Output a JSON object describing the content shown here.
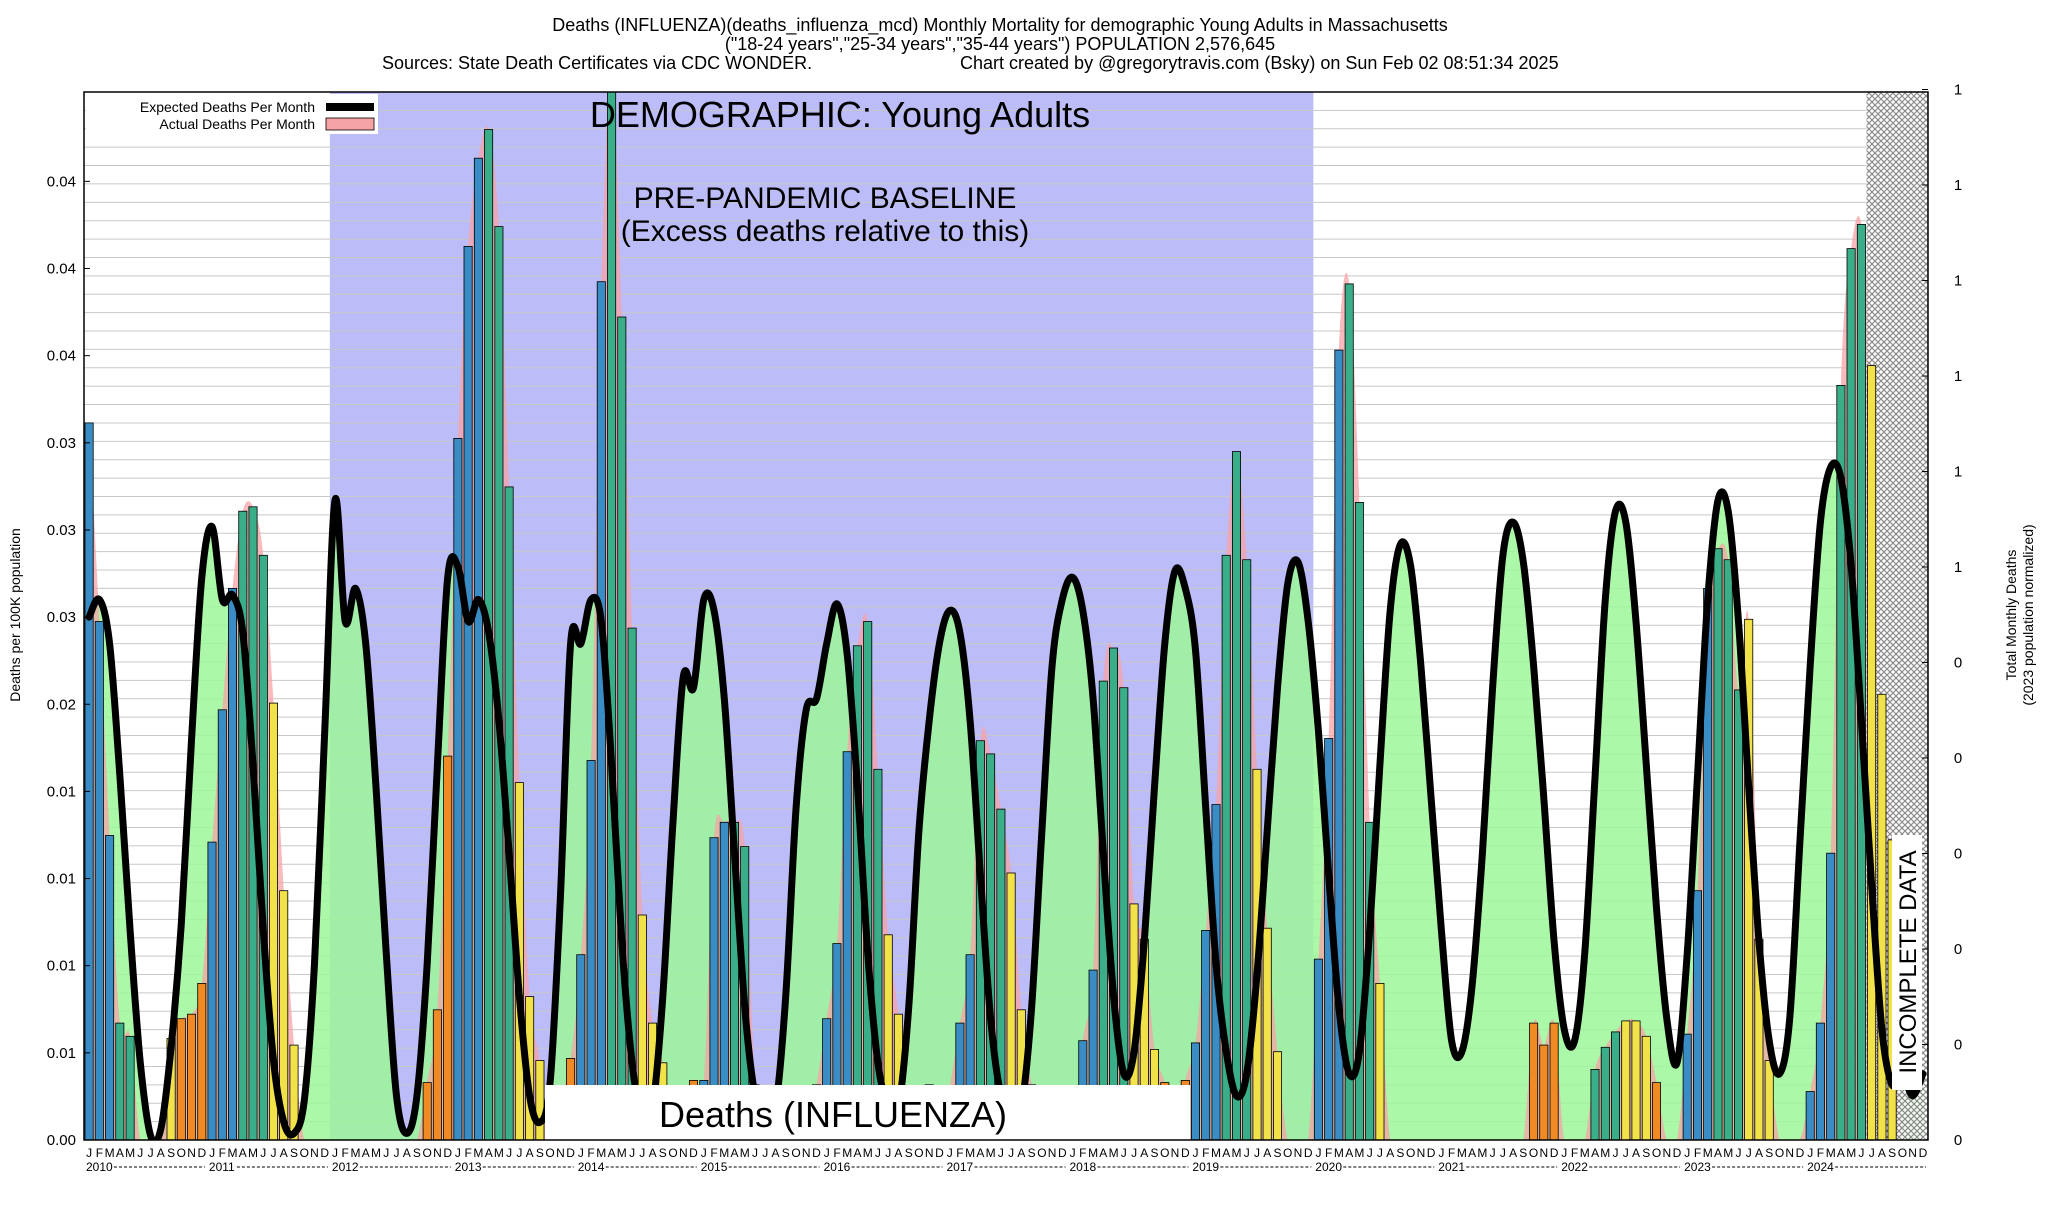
{
  "header": {
    "title_line1": "Deaths (INFLUENZA)(deaths_influenza_mcd) Monthly Mortality for demographic Young Adults in Massachusetts",
    "title_line2": "(\"18-24 years\",\"25-34 years\",\"35-44 years\") POPULATION 2,576,645",
    "sources": "Sources: State Death Certificates via CDC WONDER.",
    "credit": "Chart created by @gregorytravis.com (Bsky) on Sun Feb 02 08:51:34 2025"
  },
  "annotations": {
    "demographic": "DEMOGRAPHIC: Young Adults",
    "baseline_line1": "PRE-PANDEMIC BASELINE",
    "baseline_line2": "(Excess deaths relative to this)",
    "bottom_label": "Deaths (INFLUENZA)",
    "incomplete": "INCOMPLETE DATA"
  },
  "legend": {
    "expected": "Expected Deaths Per Month",
    "actual": "Actual Deaths Per Month"
  },
  "axes": {
    "ylabel_left": "Deaths per 100K population",
    "ylabel_right_line1": "Total Monthly Deaths",
    "ylabel_right_line2": "(2023 population normalized)",
    "left_ticks": [
      "0.00",
      "0.01",
      "0.01",
      "0.01",
      "0.01",
      "0.02",
      "0.03",
      "0.03",
      "0.03",
      "0.04",
      "0.04",
      "0.04"
    ],
    "right_ticks": [
      "0",
      "0",
      "0",
      "0",
      "0",
      "0",
      "1",
      "1",
      "1",
      "1",
      "1",
      "1"
    ],
    "month_letters": [
      "J",
      "F",
      "M",
      "A",
      "M",
      "J",
      "J",
      "A",
      "S",
      "O",
      "N",
      "D"
    ],
    "years": [
      "2010",
      "2011",
      "2012",
      "2013",
      "2014",
      "2015",
      "2016",
      "2017",
      "2018",
      "2019",
      "2020",
      "2021",
      "2022",
      "2023",
      "2024"
    ]
  },
  "colors": {
    "baseline_shade": "#bcbcf9",
    "expected_fill": "#9cf79a",
    "actual_fill": "#f5a3a5",
    "expected_line": "#000000",
    "incomplete_hatch": "#888888",
    "winter_bar": "#3a8cc4",
    "fall_bar": "#f08a24",
    "spring_bar": "#3aae88",
    "summer_bar": "#f2e24a"
  },
  "chart_data": {
    "type": "bar",
    "start": "2010-01",
    "ylim": [
      0,
      0.0475
    ],
    "grid": true,
    "legend_position": "top-left",
    "baseline_period": [
      "2012-01",
      "2019-12"
    ],
    "incomplete_period": [
      "2024-07",
      "2024-12"
    ],
    "series": [
      {
        "name": "Actual Deaths Per Month",
        "values": [
          0.0325,
          0.0235,
          0.0138,
          0.0053,
          0.0047,
          0.0,
          0.0,
          0.0,
          0.0046,
          0.0055,
          0.0057,
          0.0071,
          0.0135,
          0.0195,
          0.025,
          0.0285,
          0.0287,
          0.0265,
          0.0198,
          0.0113,
          0.0043,
          0.0,
          0.0,
          0.0,
          0.0,
          0.0,
          0.0,
          0.0,
          0.0,
          0.0,
          0.0,
          0.0,
          0.0,
          0.0026,
          0.0059,
          0.0174,
          0.0318,
          0.0405,
          0.0445,
          0.0458,
          0.0414,
          0.0296,
          0.0162,
          0.0065,
          0.0036,
          0.0,
          0.0018,
          0.0037,
          0.0084,
          0.0172,
          0.0389,
          0.0485,
          0.0373,
          0.0232,
          0.0102,
          0.0053,
          0.0035,
          0.0,
          0.0,
          0.0027,
          0.0027,
          0.0137,
          0.0144,
          0.0144,
          0.0133,
          0.0025,
          0.0,
          0.0,
          0.0,
          0.0,
          0.0,
          0.0025,
          0.0055,
          0.0089,
          0.0176,
          0.0224,
          0.0235,
          0.0168,
          0.0093,
          0.0057,
          0.0,
          0.0,
          0.0025,
          0.0,
          0.0024,
          0.0053,
          0.0084,
          0.0181,
          0.0175,
          0.015,
          0.0121,
          0.0059,
          0.0025,
          0.0,
          0.0,
          0.0,
          0.0,
          0.0045,
          0.0077,
          0.0208,
          0.0223,
          0.0205,
          0.0107,
          0.0091,
          0.0041,
          0.0026,
          0.0,
          0.0027,
          0.0044,
          0.0095,
          0.0152,
          0.0265,
          0.0312,
          0.0263,
          0.0168,
          0.0096,
          0.004,
          0.0,
          0.0,
          0.0,
          0.0082,
          0.0182,
          0.0358,
          0.0388,
          0.0289,
          0.0144,
          0.0071,
          0.0,
          0.0,
          0.0,
          0.0,
          0.0,
          0.0,
          0.0,
          0.0,
          0.0,
          0.0,
          0.0,
          0.0,
          0.0,
          0.0,
          0.0053,
          0.0043,
          0.0053,
          0.0,
          0.0,
          0.0,
          0.0032,
          0.0042,
          0.0049,
          0.0054,
          0.0054,
          0.0047,
          0.0026,
          0.0,
          0.0,
          0.0048,
          0.0113,
          0.025,
          0.0268,
          0.0263,
          0.0204,
          0.0236,
          0.0091,
          0.0036,
          0.0,
          0.0,
          0.0,
          0.0022,
          0.0053,
          0.013,
          0.0342,
          0.0404,
          0.0415,
          0.0351,
          0.0202,
          0.0136,
          0.0,
          0.0,
          0.0
        ]
      },
      {
        "name": "Expected Deaths Per Month",
        "values": [
          0.0237,
          0.0245,
          0.0225,
          0.0165,
          0.0095,
          0.0035,
          0.0002,
          0.0005,
          0.0042,
          0.0098,
          0.0182,
          0.0255,
          0.0278,
          0.0245,
          0.0247,
          0.023,
          0.017,
          0.0095,
          0.0036,
          0.0008,
          0.0003,
          0.0018,
          0.008,
          0.0185,
          0.029,
          0.0235,
          0.025,
          0.0225,
          0.016,
          0.0085,
          0.002,
          0.0003,
          0.002,
          0.008,
          0.017,
          0.0255,
          0.026,
          0.0235,
          0.0245,
          0.023,
          0.019,
          0.013,
          0.0065,
          0.002,
          0.0008,
          0.0026,
          0.011,
          0.0225,
          0.0225,
          0.0245,
          0.0235,
          0.017,
          0.009,
          0.0035,
          0.001,
          0.0015,
          0.0065,
          0.0145,
          0.021,
          0.0205,
          0.0245,
          0.024,
          0.02,
          0.013,
          0.006,
          0.002,
          0.0008,
          0.0015,
          0.0065,
          0.015,
          0.0195,
          0.02,
          0.0225,
          0.0243,
          0.022,
          0.016,
          0.0085,
          0.0035,
          0.0015,
          0.0015,
          0.006,
          0.014,
          0.019,
          0.0225,
          0.024,
          0.023,
          0.019,
          0.012,
          0.0055,
          0.002,
          0.001,
          0.0015,
          0.006,
          0.014,
          0.0215,
          0.0245,
          0.0255,
          0.024,
          0.02,
          0.013,
          0.0065,
          0.003,
          0.004,
          0.009,
          0.016,
          0.0225,
          0.0258,
          0.025,
          0.0222,
          0.015,
          0.008,
          0.004,
          0.002,
          0.003,
          0.0075,
          0.014,
          0.0205,
          0.0252,
          0.0262,
          0.0235,
          0.0185,
          0.012,
          0.006,
          0.003,
          0.004,
          0.0095,
          0.017,
          0.024,
          0.027,
          0.026,
          0.0215,
          0.0155,
          0.0095,
          0.0045,
          0.004,
          0.007,
          0.013,
          0.0205,
          0.0265,
          0.028,
          0.0262,
          0.0215,
          0.0155,
          0.009,
          0.005,
          0.0045,
          0.0085,
          0.0165,
          0.0245,
          0.0285,
          0.028,
          0.0235,
          0.017,
          0.0105,
          0.0055,
          0.0035,
          0.0085,
          0.0165,
          0.0245,
          0.029,
          0.0285,
          0.0235,
          0.016,
          0.009,
          0.0045,
          0.003,
          0.0055,
          0.0135,
          0.0215,
          0.028,
          0.0305,
          0.03,
          0.026,
          0.019,
          0.0115,
          0.005,
          0.0025,
          0.003,
          0.002,
          0.003
        ]
      }
    ]
  }
}
